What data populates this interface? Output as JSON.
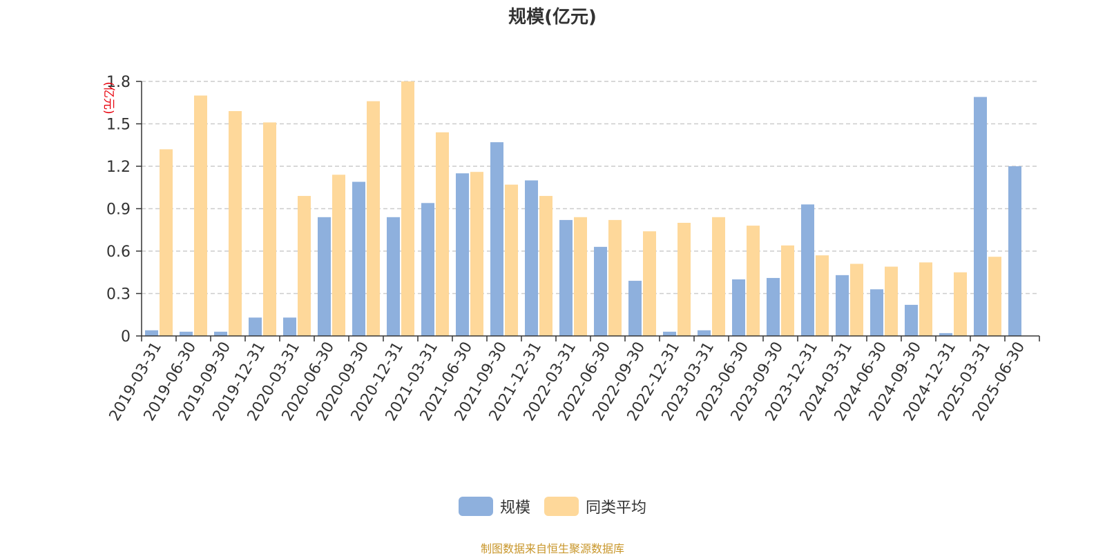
{
  "title": "规模(亿元)",
  "unit_label": "(亿元)",
  "source": "制图数据来自恒生聚源数据库",
  "colors": {
    "scale": "#8eb0dd",
    "avg": "#fed89a",
    "unit": "#e8000b",
    "grid": "#cccccc",
    "axis": "#333333"
  },
  "legend": [
    {
      "name": "规模",
      "color": "#8eb0dd"
    },
    {
      "name": "同类平均",
      "color": "#fed89a"
    }
  ],
  "chart_data": {
    "type": "bar",
    "title": "规模(亿元)",
    "ylabel": "(亿元)",
    "ylim": [
      0,
      1.8
    ],
    "yticks": [
      "0",
      "0.3",
      "0.6",
      "0.9",
      "1.2",
      "1.5",
      "1.8"
    ],
    "grid": true,
    "legend_position": "bottom",
    "categories": [
      "2019-03-31",
      "2019-06-30",
      "2019-09-30",
      "2019-12-31",
      "2020-03-31",
      "2020-06-30",
      "2020-09-30",
      "2020-12-31",
      "2021-03-31",
      "2021-06-30",
      "2021-09-30",
      "2021-12-31",
      "2022-03-31",
      "2022-06-30",
      "2022-09-30",
      "2022-12-31",
      "2023-03-31",
      "2023-06-30",
      "2023-09-30",
      "2023-12-31",
      "2024-03-31",
      "2024-06-30",
      "2024-09-30",
      "2024-12-31",
      "2025-03-31",
      "2025-06-30"
    ],
    "series": [
      {
        "name": "规模",
        "values": [
          0.04,
          0.03,
          0.03,
          0.13,
          0.13,
          0.84,
          1.09,
          0.84,
          0.94,
          1.15,
          1.37,
          1.1,
          0.82,
          0.63,
          0.39,
          0.03,
          0.04,
          0.4,
          0.41,
          0.93,
          0.43,
          0.33,
          0.22,
          0.02,
          1.69,
          1.2
        ]
      },
      {
        "name": "同类平均",
        "values": [
          1.32,
          1.7,
          1.59,
          1.51,
          0.99,
          1.14,
          1.66,
          1.8,
          1.44,
          1.16,
          1.07,
          0.99,
          0.84,
          0.82,
          0.74,
          0.8,
          0.84,
          0.78,
          0.64,
          0.57,
          0.51,
          0.49,
          0.52,
          0.45,
          0.56,
          null
        ]
      }
    ]
  }
}
